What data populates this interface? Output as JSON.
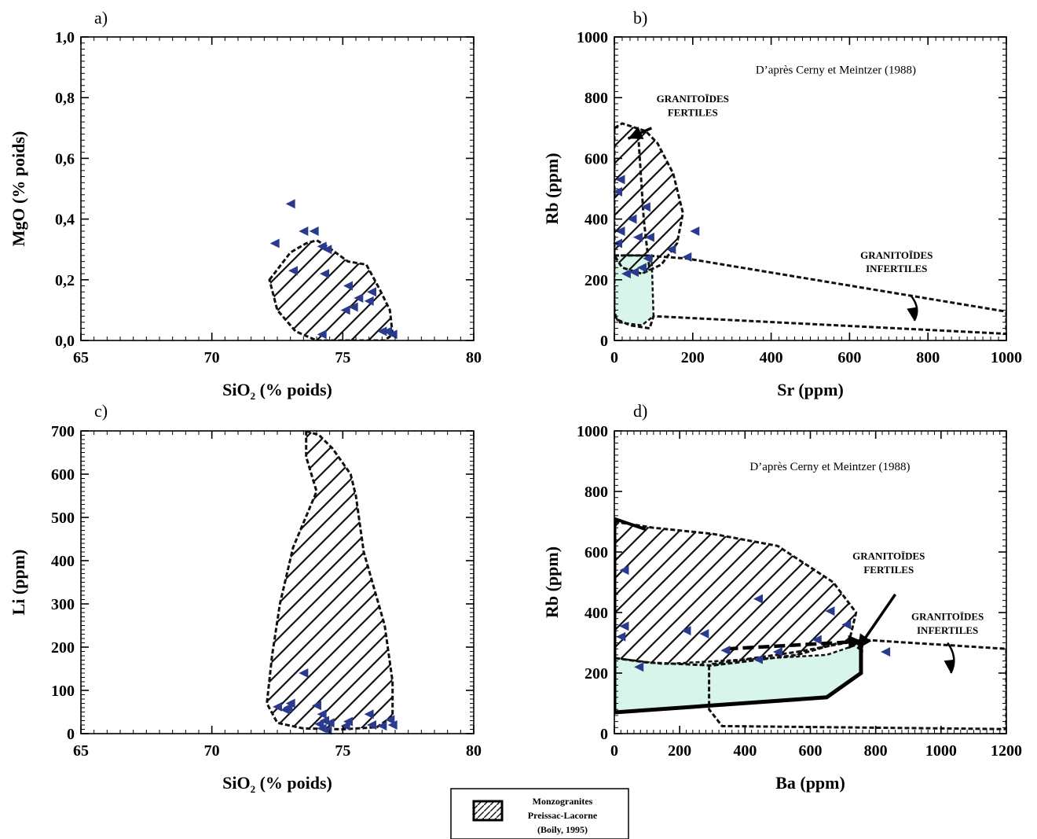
{
  "colors": {
    "marker": "#2a3a8c",
    "infertile_fill": "#d7f5ea",
    "frame": "#000000"
  },
  "chart_data": [
    {
      "id": "a",
      "type": "scatter",
      "panel_label": "a)",
      "xlabel_main": "SiO",
      "xlabel_sub": "2",
      "xlabel_rest": " (% poids)",
      "ylabel": "MgO (% poids)",
      "xlim": [
        65,
        80
      ],
      "ylim": [
        0,
        1
      ],
      "xticks": [
        65,
        70,
        75,
        80
      ],
      "xtick_labels": [
        "65",
        "70",
        "75",
        "80"
      ],
      "yticks": [
        0,
        0.2,
        0.4,
        0.6,
        0.8,
        1.0
      ],
      "ytick_labels": [
        "0,0",
        "0,2",
        "0,4",
        "0,6",
        "0,8",
        "1,0"
      ],
      "points": [
        [
          73.0,
          0.45
        ],
        [
          72.4,
          0.32
        ],
        [
          73.5,
          0.36
        ],
        [
          73.9,
          0.36
        ],
        [
          74.2,
          0.31
        ],
        [
          74.4,
          0.3
        ],
        [
          73.1,
          0.23
        ],
        [
          74.3,
          0.22
        ],
        [
          75.2,
          0.18
        ],
        [
          75.6,
          0.14
        ],
        [
          76.0,
          0.13
        ],
        [
          76.1,
          0.16
        ],
        [
          75.1,
          0.1
        ],
        [
          75.4,
          0.11
        ],
        [
          74.2,
          0.02
        ],
        [
          76.5,
          0.03
        ],
        [
          76.7,
          0.03
        ],
        [
          76.9,
          0.02
        ]
      ],
      "regions": [
        {
          "name": "monzogranites",
          "style": "hatch",
          "polygon": [
            [
              72.2,
              0.2
            ],
            [
              73.0,
              0.29
            ],
            [
              73.6,
              0.32
            ],
            [
              74.0,
              0.33
            ],
            [
              74.4,
              0.31
            ],
            [
              75.2,
              0.26
            ],
            [
              75.9,
              0.25
            ],
            [
              76.4,
              0.17
            ],
            [
              76.8,
              0.1
            ],
            [
              76.9,
              0.02
            ],
            [
              76.6,
              0.0
            ],
            [
              75.5,
              0.0
            ],
            [
              74.0,
              0.0
            ],
            [
              73.2,
              0.03
            ],
            [
              72.5,
              0.1
            ]
          ]
        }
      ],
      "arrows": [],
      "annotations": []
    },
    {
      "id": "b",
      "type": "scatter",
      "panel_label": "b)",
      "xlabel_main": "Sr (ppm)",
      "xlabel_sub": "",
      "xlabel_rest": "",
      "ylabel": "Rb (ppm)",
      "xlim": [
        0,
        1000
      ],
      "ylim": [
        0,
        1000
      ],
      "xticks": [
        0,
        200,
        400,
        600,
        800,
        1000
      ],
      "xtick_labels": [
        "0",
        "200",
        "400",
        "600",
        "800",
        "1000"
      ],
      "yticks": [
        0,
        200,
        400,
        600,
        800,
        1000
      ],
      "ytick_labels": [
        "0",
        "200",
        "400",
        "600",
        "800",
        "1000"
      ],
      "points": [
        [
          15,
          530
        ],
        [
          8,
          490
        ],
        [
          45,
          400
        ],
        [
          80,
          440
        ],
        [
          15,
          360
        ],
        [
          60,
          340
        ],
        [
          90,
          340
        ],
        [
          8,
          320
        ],
        [
          145,
          300
        ],
        [
          85,
          270
        ],
        [
          185,
          275
        ],
        [
          205,
          360
        ],
        [
          30,
          220
        ],
        [
          50,
          225
        ],
        [
          70,
          240
        ]
      ],
      "regions": [
        {
          "name": "infertile-fill",
          "style": "fill",
          "polygon": [
            [
              0,
              280
            ],
            [
              95,
              280
            ],
            [
              100,
              80
            ],
            [
              70,
              50
            ],
            [
              10,
              60
            ],
            [
              0,
              90
            ]
          ]
        },
        {
          "name": "fertile-hatch",
          "style": "hatch",
          "polygon": [
            [
              0,
              700
            ],
            [
              20,
              715
            ],
            [
              80,
              690
            ],
            [
              110,
              650
            ],
            [
              150,
              550
            ],
            [
              175,
              420
            ],
            [
              160,
              320
            ],
            [
              120,
              250
            ],
            [
              70,
              220
            ],
            [
              20,
              240
            ],
            [
              0,
              280
            ]
          ]
        },
        {
          "name": "infertile-outline",
          "style": "dashed",
          "polygon": [
            [
              0,
              280
            ],
            [
              80,
              280
            ],
            [
              185,
              270
            ],
            [
              1000,
              95
            ],
            [
              1000,
              22
            ],
            [
              100,
              80
            ],
            [
              90,
              40
            ],
            [
              40,
              50
            ],
            [
              5,
              70
            ],
            [
              0,
              100
            ]
          ]
        },
        {
          "name": "inner-dashed",
          "style": "dashed",
          "polygon": [
            [
              60,
              700
            ],
            [
              75,
              400
            ],
            [
              90,
              230
            ]
          ]
        }
      ],
      "arrows": [
        {
          "from": [
            95,
            700
          ],
          "to": [
            35,
            665
          ],
          "style": "bold"
        },
        {
          "from": [
            755,
            150
          ],
          "to": [
            765,
            65
          ],
          "style": "curved"
        }
      ],
      "annotations": [
        {
          "text": "D’après Cerny et Meintzer (1988)",
          "x": 565,
          "y": 880,
          "style": "normal"
        },
        {
          "text": "GRANITOÏDES",
          "x": 200,
          "y": 785,
          "style": "bold"
        },
        {
          "text": "FERTILES",
          "x": 200,
          "y": 740,
          "style": "bold"
        },
        {
          "text": "GRANITOÏDES",
          "x": 720,
          "y": 270,
          "style": "bold"
        },
        {
          "text": "INFERTILES",
          "x": 720,
          "y": 225,
          "style": "bold"
        }
      ]
    },
    {
      "id": "c",
      "type": "scatter",
      "panel_label": "c)",
      "xlabel_main": "SiO",
      "xlabel_sub": "2",
      "xlabel_rest": " (% poids)",
      "ylabel": "Li (ppm)",
      "xlim": [
        65,
        80
      ],
      "ylim": [
        0,
        700
      ],
      "xticks": [
        65,
        70,
        75,
        80
      ],
      "xtick_labels": [
        "65",
        "70",
        "75",
        "80"
      ],
      "yticks": [
        0,
        100,
        200,
        300,
        400,
        500,
        600,
        700
      ],
      "ytick_labels": [
        "0",
        "100",
        "200",
        "300",
        "400",
        "500",
        "600",
        "700"
      ],
      "points": [
        [
          73.5,
          140
        ],
        [
          72.5,
          62
        ],
        [
          72.9,
          60
        ],
        [
          73.0,
          70
        ],
        [
          72.8,
          55
        ],
        [
          74.0,
          65
        ],
        [
          74.2,
          45
        ],
        [
          74.3,
          30
        ],
        [
          74.1,
          22
        ],
        [
          74.5,
          25
        ],
        [
          74.2,
          12
        ],
        [
          75.2,
          28
        ],
        [
          75.1,
          18
        ],
        [
          76.0,
          45
        ],
        [
          76.1,
          20
        ],
        [
          76.5,
          18
        ],
        [
          76.8,
          32
        ],
        [
          76.9,
          20
        ],
        [
          74.4,
          8
        ]
      ],
      "regions": [
        {
          "name": "monzogranites",
          "style": "hatch",
          "polygon": [
            [
              73.6,
              700
            ],
            [
              74.1,
              690
            ],
            [
              74.6,
              660
            ],
            [
              75.3,
              600
            ],
            [
              75.5,
              550
            ],
            [
              75.8,
              420
            ],
            [
              76.6,
              250
            ],
            [
              76.9,
              120
            ],
            [
              76.9,
              40
            ],
            [
              76.3,
              15
            ],
            [
              75.0,
              10
            ],
            [
              73.5,
              12
            ],
            [
              72.5,
              25
            ],
            [
              72.1,
              70
            ],
            [
              72.3,
              180
            ],
            [
              72.6,
              300
            ],
            [
              73.1,
              430
            ],
            [
              74.0,
              560
            ],
            [
              73.6,
              640
            ]
          ]
        }
      ],
      "arrows": [],
      "annotations": []
    },
    {
      "id": "d",
      "type": "scatter",
      "panel_label": "d)",
      "xlabel_main": "Ba (ppm)",
      "xlabel_sub": "",
      "xlabel_rest": "",
      "ylabel": "Rb (ppm)",
      "xlim": [
        0,
        1200
      ],
      "ylim": [
        0,
        1000
      ],
      "xticks": [
        0,
        200,
        400,
        600,
        800,
        1000,
        1200
      ],
      "xtick_labels": [
        "0",
        "200",
        "400",
        "600",
        "800",
        "1000",
        "1200"
      ],
      "yticks": [
        0,
        200,
        400,
        600,
        800,
        1000
      ],
      "ytick_labels": [
        "0",
        "200",
        "400",
        "600",
        "800",
        "1000"
      ],
      "points": [
        [
          30,
          540
        ],
        [
          30,
          355
        ],
        [
          20,
          320
        ],
        [
          75,
          220
        ],
        [
          220,
          340
        ],
        [
          275,
          330
        ],
        [
          340,
          275
        ],
        [
          440,
          445
        ],
        [
          440,
          245
        ],
        [
          500,
          270
        ],
        [
          620,
          310
        ],
        [
          660,
          405
        ],
        [
          710,
          360
        ],
        [
          830,
          270
        ]
      ],
      "regions": [
        {
          "name": "infertile-fill",
          "style": "fill",
          "polygon": [
            [
              0,
              250
            ],
            [
              150,
              230
            ],
            [
              650,
              260
            ],
            [
              760,
              300
            ],
            [
              755,
              200
            ],
            [
              650,
              120
            ],
            [
              0,
              70
            ]
          ]
        },
        {
          "name": "fertile-hatch",
          "style": "hatch",
          "polygon": [
            [
              0,
              700
            ],
            [
              120,
              680
            ],
            [
              300,
              660
            ],
            [
              500,
              620
            ],
            [
              670,
              500
            ],
            [
              740,
              400
            ],
            [
              720,
              310
            ],
            [
              560,
              260
            ],
            [
              300,
              225
            ],
            [
              100,
              235
            ],
            [
              0,
              250
            ]
          ]
        },
        {
          "name": "infertile-outline",
          "style": "dashed",
          "polygon": [
            [
              290,
              225
            ],
            [
              290,
              80
            ],
            [
              330,
              25
            ],
            [
              1200,
              15
            ],
            [
              1200,
              280
            ],
            [
              760,
              310
            ],
            [
              560,
              270
            ],
            [
              300,
              230
            ]
          ]
        }
      ],
      "arrows": [
        {
          "from": [
            0,
            710
          ],
          "to": [
            95,
            675
          ],
          "style": "bold-line"
        },
        {
          "from": [
            860,
            460
          ],
          "to": [
            745,
            280
          ],
          "style": "bold"
        },
        {
          "from": [
            345,
            280
          ],
          "to": [
            760,
            305
          ],
          "style": "dashed-bold"
        },
        {
          "from": [
            1020,
            300
          ],
          "to": [
            1030,
            200
          ],
          "style": "curved"
        }
      ],
      "annotations": [
        {
          "text": "D’après Cerny et Meintzer (1988)",
          "x": 660,
          "y": 870,
          "style": "normal"
        },
        {
          "text": "GRANITOÏDES",
          "x": 840,
          "y": 575,
          "style": "bold"
        },
        {
          "text": "FERTILES",
          "x": 840,
          "y": 530,
          "style": "bold"
        },
        {
          "text": "GRANITOÏDES",
          "x": 1020,
          "y": 375,
          "style": "bold"
        },
        {
          "text": "INFERTILES",
          "x": 1020,
          "y": 330,
          "style": "bold"
        }
      ]
    }
  ],
  "legend": {
    "line1": "Monzogranites",
    "line2": "Preissac-Lacorne",
    "line3": "(Boily, 1995)"
  }
}
